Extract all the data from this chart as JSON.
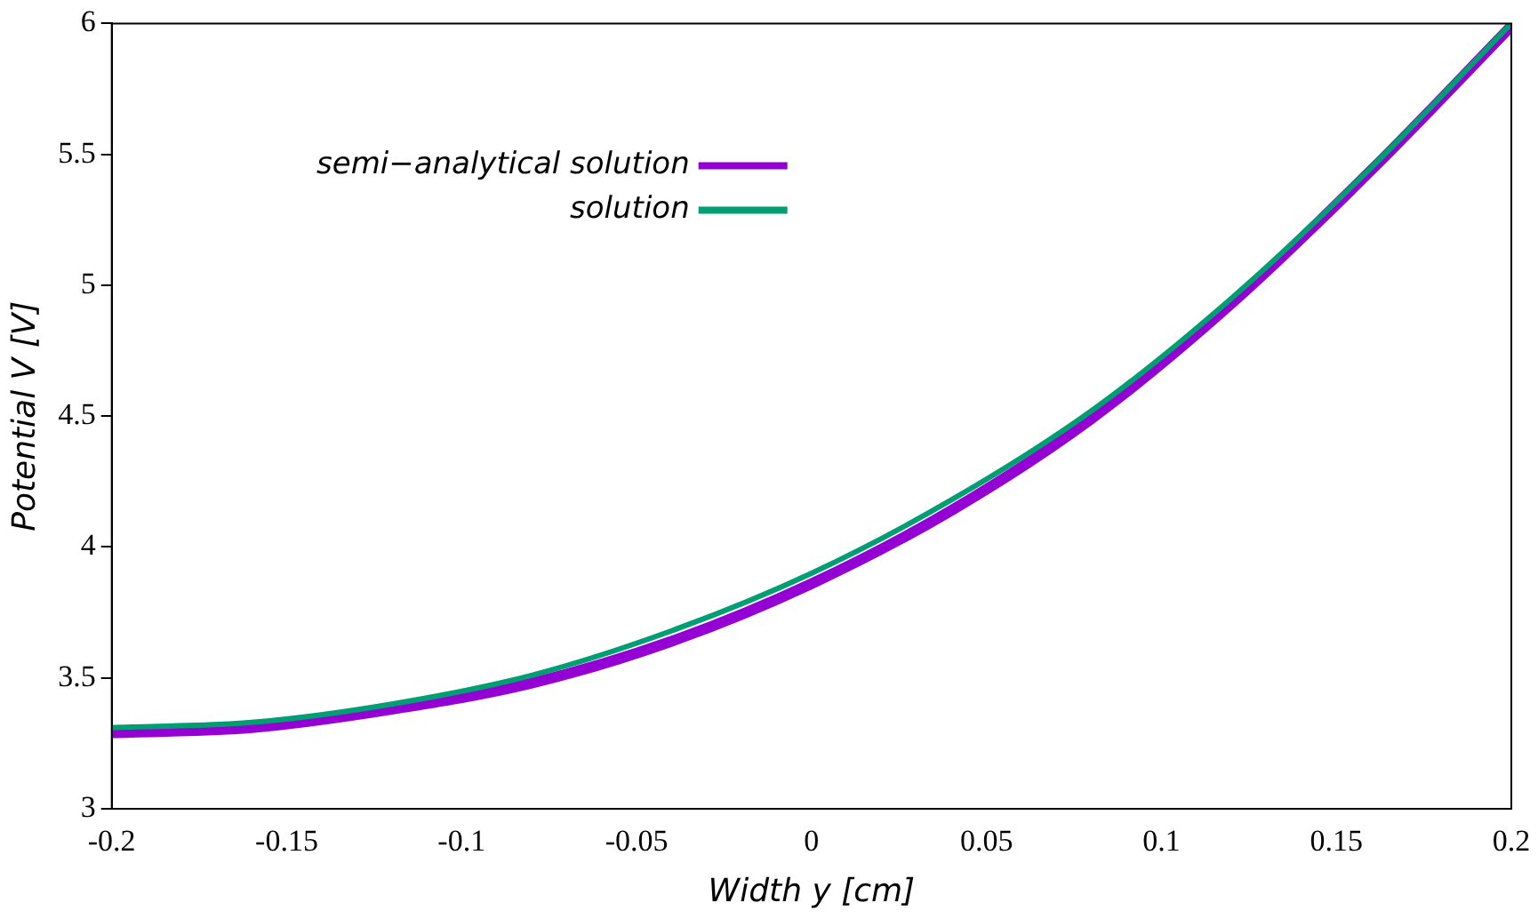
{
  "chart_data": {
    "type": "line",
    "xlabel": "Width y [cm]",
    "ylabel": "Potential V [V]",
    "x": [
      -0.2,
      -0.16,
      -0.12,
      -0.08,
      -0.04,
      0,
      0.04,
      0.08,
      0.12,
      0.16,
      0.2
    ],
    "series": [
      {
        "name": "semi−analytical solution",
        "color": "#9400d3",
        "values": [
          3.29,
          3.31,
          3.38,
          3.48,
          3.64,
          3.86,
          4.14,
          4.49,
          4.93,
          5.44,
          5.99
        ]
      },
      {
        "name": "solution",
        "color": "#009e73",
        "values": [
          3.31,
          3.33,
          3.4,
          3.51,
          3.68,
          3.9,
          4.18,
          4.52,
          4.95,
          5.45,
          6.0
        ]
      }
    ],
    "xlim": [
      -0.2,
      0.2
    ],
    "xticks": [
      -0.2,
      -0.15,
      -0.1,
      -0.05,
      0,
      0.05,
      0.1,
      0.15,
      0.2
    ],
    "ylim": [
      3,
      6
    ],
    "yticks": [
      3,
      3.5,
      4,
      4.5,
      5,
      5.5,
      6
    ],
    "grid": false,
    "legend": "top left",
    "marker": "none",
    "line_style": "solid"
  }
}
